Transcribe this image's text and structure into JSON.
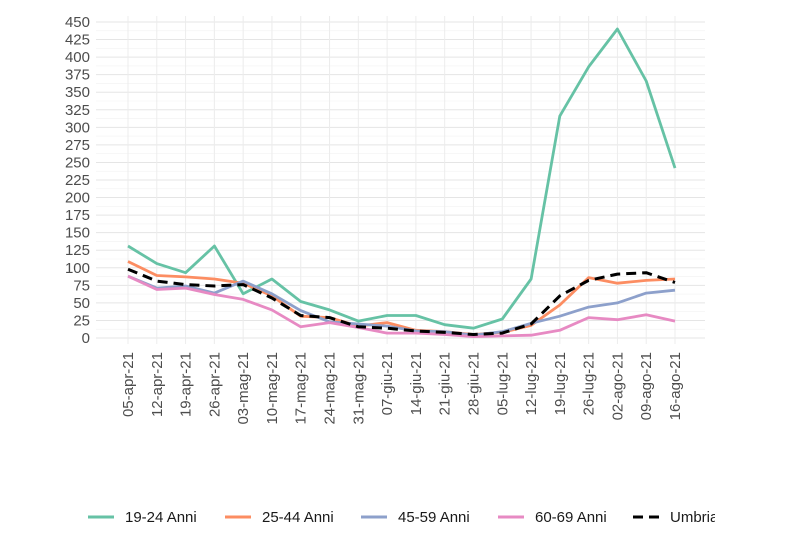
{
  "chart_data": {
    "type": "line",
    "title": "",
    "xlabel": "",
    "ylabel": "",
    "ylim": [
      0,
      450
    ],
    "y_ticks": [
      0,
      25,
      50,
      75,
      100,
      125,
      150,
      175,
      200,
      225,
      250,
      275,
      300,
      325,
      350,
      375,
      400,
      425,
      450
    ],
    "grid": true,
    "legend_position": "bottom",
    "categories": [
      "05-apr-21",
      "12-apr-21",
      "19-apr-21",
      "26-apr-21",
      "03-mag-21",
      "10-mag-21",
      "17-mag-21",
      "24-mag-21",
      "31-mag-21",
      "07-giu-21",
      "14-giu-21",
      "21-giu-21",
      "28-giu-21",
      "05-lug-21",
      "12-lug-21",
      "19-lug-21",
      "26-lug-21",
      "02-ago-21",
      "09-ago-21",
      "16-ago-21"
    ],
    "series": [
      {
        "name": "19-24 Anni",
        "color": "#66c2a5",
        "dashed": false,
        "values": [
          131,
          106,
          93,
          131,
          63,
          84,
          52,
          40,
          24,
          32,
          32,
          19,
          14,
          27,
          84,
          316,
          386,
          440,
          366,
          242
        ]
      },
      {
        "name": "25-44 Anni",
        "color": "#fc8d62",
        "dashed": false,
        "values": [
          109,
          89,
          87,
          84,
          78,
          60,
          31,
          29,
          17,
          22,
          11,
          9,
          5,
          8,
          18,
          47,
          86,
          78,
          82,
          84
        ]
      },
      {
        "name": "45-59 Anni",
        "color": "#8da0cb",
        "dashed": false,
        "values": [
          88,
          71,
          74,
          64,
          81,
          63,
          39,
          23,
          20,
          17,
          10,
          9,
          4,
          9,
          21,
          31,
          44,
          50,
          64,
          68
        ]
      },
      {
        "name": "60-69 Anni",
        "color": "#e78ac3",
        "dashed": false,
        "values": [
          88,
          69,
          71,
          62,
          55,
          40,
          16,
          22,
          15,
          7,
          7,
          5,
          2,
          3,
          4,
          11,
          29,
          26,
          33,
          24
        ]
      },
      {
        "name": "Umbria",
        "color": "#000000",
        "dashed": true,
        "values": [
          98,
          81,
          76,
          74,
          76,
          57,
          32,
          29,
          16,
          14,
          10,
          8,
          5,
          7,
          20,
          60,
          82,
          91,
          93,
          79
        ]
      }
    ]
  }
}
